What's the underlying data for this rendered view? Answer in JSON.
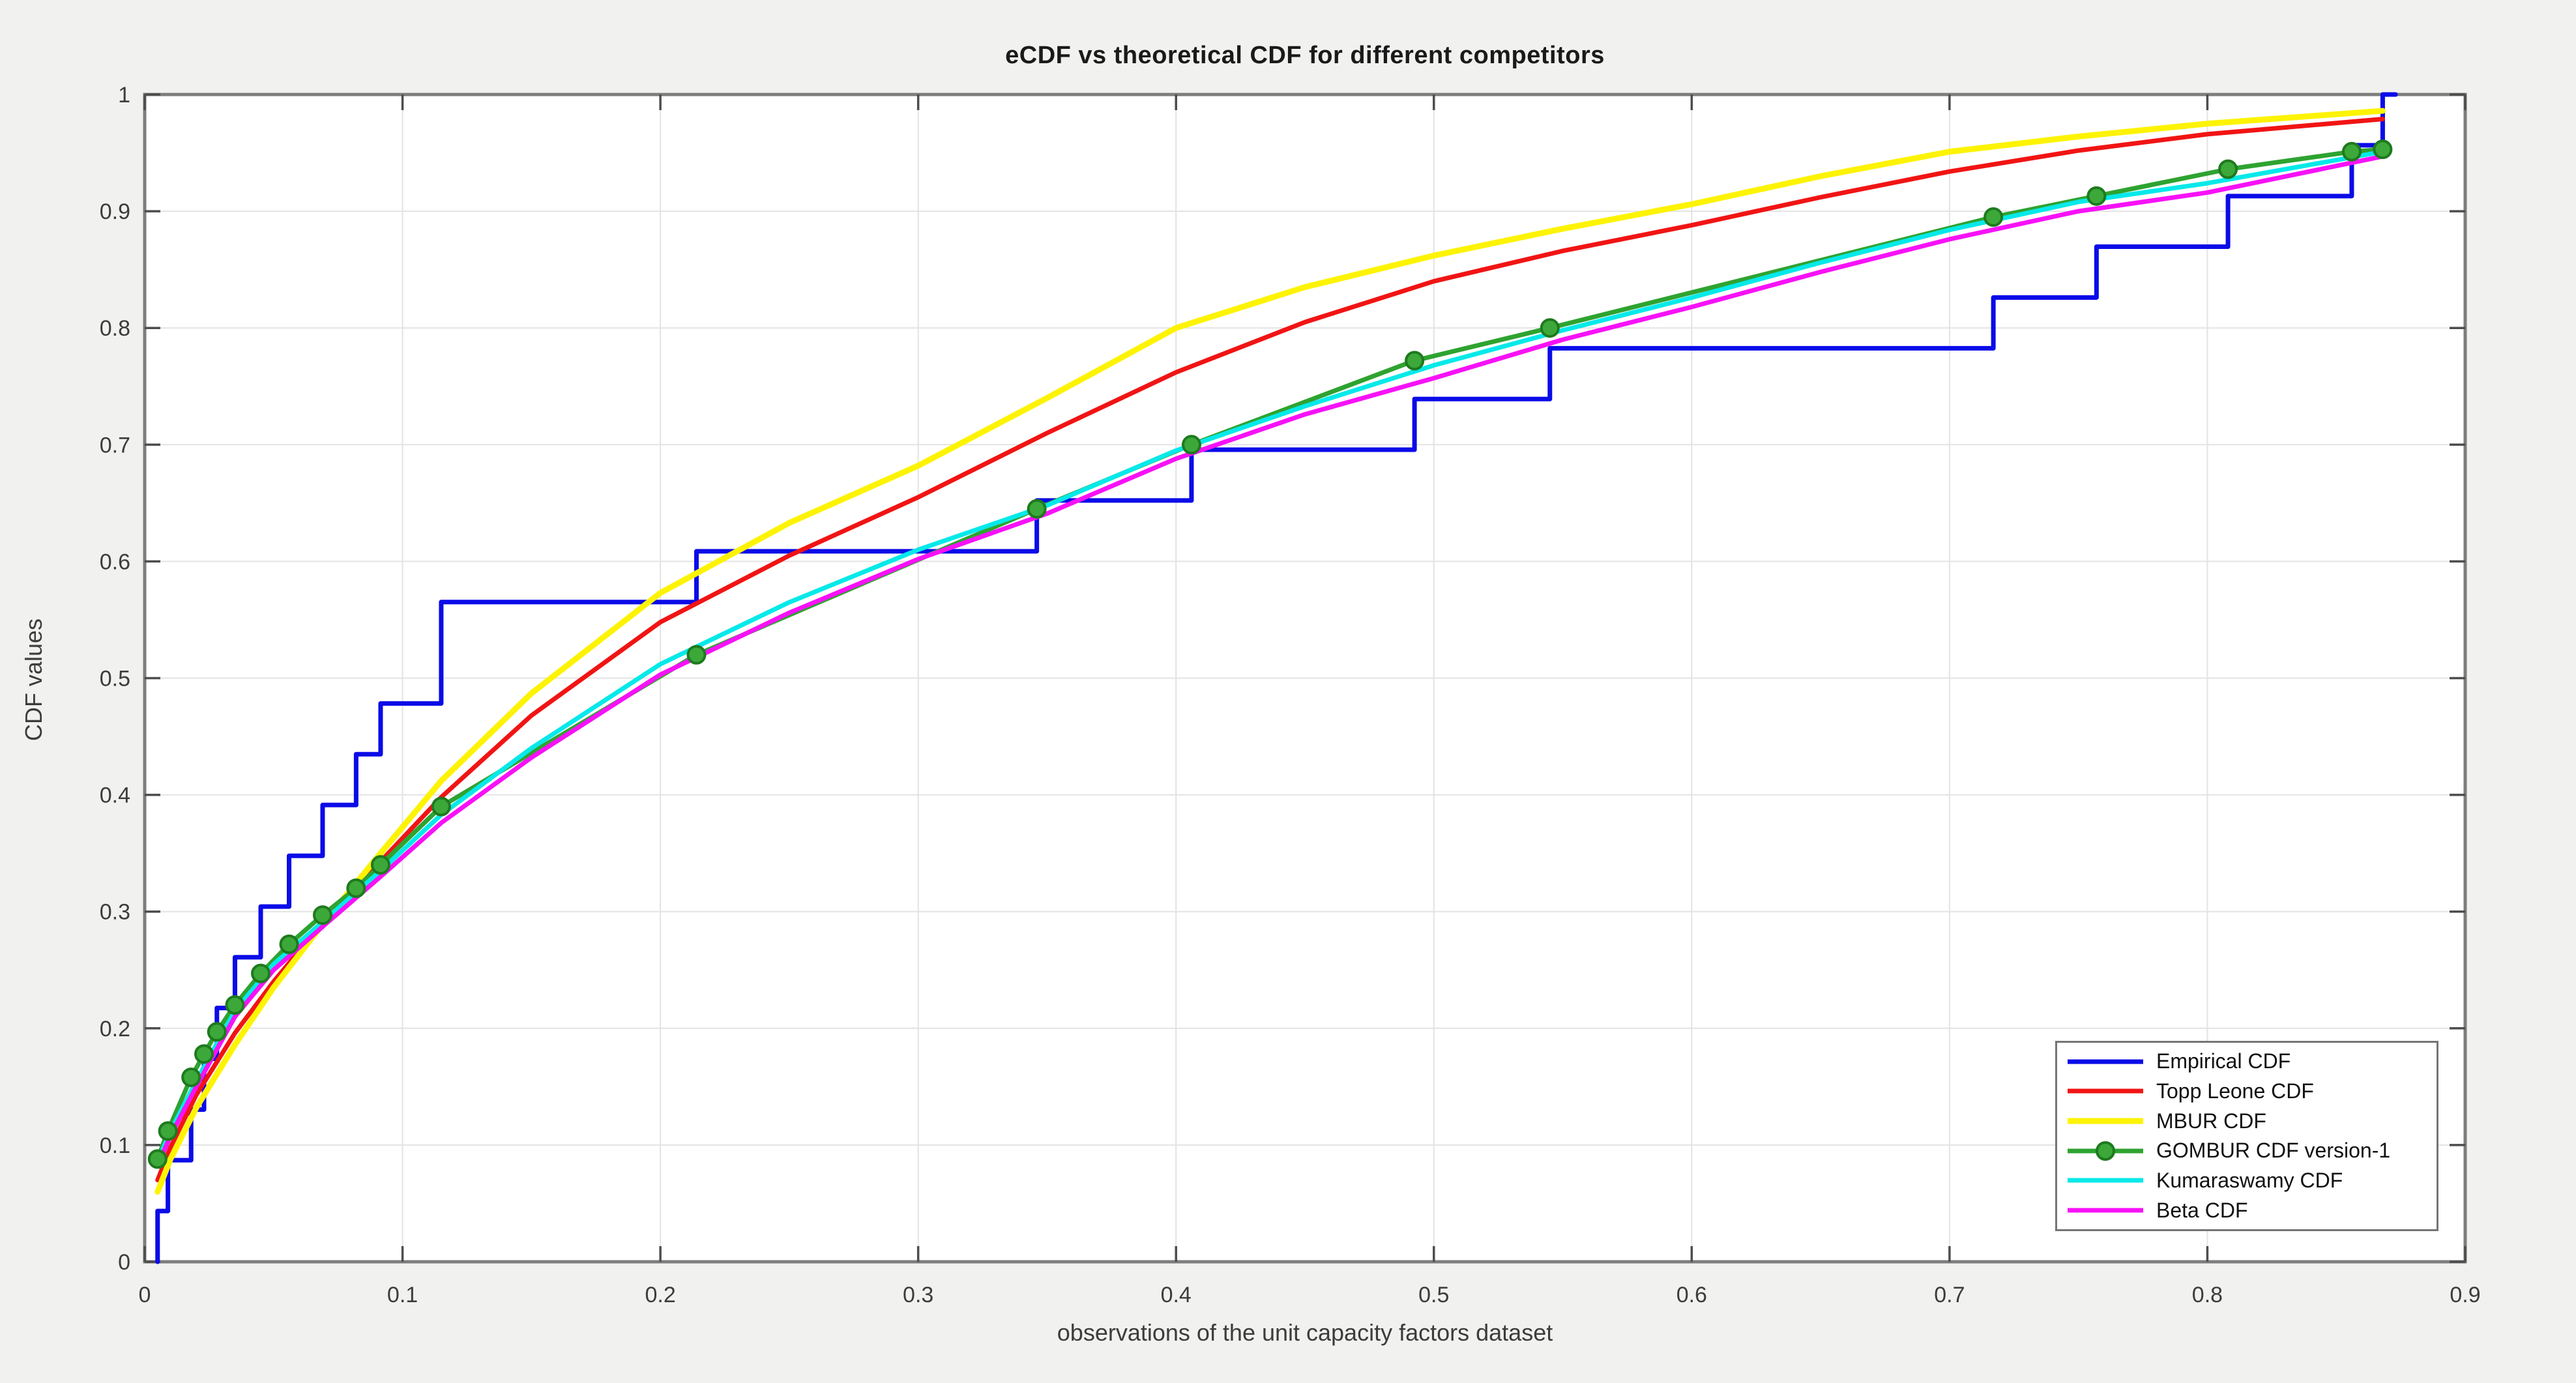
{
  "window": {
    "background_color": "#f1f1ef",
    "plot_background_color": "#ffffff",
    "axis_box_color": "#7d7d7d",
    "grid_color": "#e3e3e3",
    "tick_color": "#4d4d4d",
    "tick_label_color": "#3c3c3c"
  },
  "chart_data": {
    "type": "line",
    "title": "eCDF vs theoretical CDF for different competitors",
    "xlabel": "observations of the unit capacity factors dataset",
    "ylabel": "CDF values",
    "xlim": [
      0,
      0.9
    ],
    "ylim": [
      0,
      1
    ],
    "xticks": [
      0,
      0.1,
      0.2,
      0.3,
      0.4,
      0.5,
      0.6,
      0.7,
      0.8,
      0.9
    ],
    "xtick_labels": [
      "0",
      "0.1",
      "0.2",
      "0.3",
      "0.4",
      "0.5",
      "0.6",
      "0.7",
      "0.8",
      "0.9"
    ],
    "yticks": [
      0,
      0.1,
      0.2,
      0.3,
      0.4,
      0.5,
      0.6,
      0.7,
      0.8,
      0.9,
      1
    ],
    "ytick_labels": [
      "0",
      "0.1",
      "0.2",
      "0.3",
      "0.4",
      "0.5",
      "0.6",
      "0.7",
      "0.8",
      "0.9",
      "1"
    ],
    "grid": true,
    "legend_position": "lower right",
    "series": [
      {
        "name": "Empirical CDF",
        "color": "#0b0be8",
        "line_width": 7,
        "type": "step",
        "points": [
          [
            0.005,
            0.0435
          ],
          [
            0.009,
            0.087
          ],
          [
            0.018,
            0.1304
          ],
          [
            0.023,
            0.1739
          ],
          [
            0.028,
            0.2174
          ],
          [
            0.035,
            0.2609
          ],
          [
            0.045,
            0.3043
          ],
          [
            0.056,
            0.3478
          ],
          [
            0.069,
            0.3913
          ],
          [
            0.082,
            0.4348
          ],
          [
            0.0915,
            0.4783
          ],
          [
            0.115,
            0.5652
          ],
          [
            0.214,
            0.6087
          ],
          [
            0.346,
            0.6522
          ],
          [
            0.406,
            0.6957
          ],
          [
            0.4925,
            0.7391
          ],
          [
            0.545,
            0.7826
          ],
          [
            0.717,
            0.8261
          ],
          [
            0.757,
            0.8696
          ],
          [
            0.808,
            0.913
          ],
          [
            0.856,
            0.9565
          ],
          [
            0.868,
            1.0
          ]
        ],
        "tail_x": 0.873
      },
      {
        "name": "Topp Leone CDF",
        "color": "#f11414",
        "line_width": 7,
        "type": "line",
        "points": [
          [
            0.005,
            0.07
          ],
          [
            0.01,
            0.098
          ],
          [
            0.02,
            0.143
          ],
          [
            0.035,
            0.196
          ],
          [
            0.05,
            0.24
          ],
          [
            0.07,
            0.293
          ],
          [
            0.0915,
            0.343
          ],
          [
            0.115,
            0.398
          ],
          [
            0.15,
            0.468
          ],
          [
            0.2,
            0.548
          ],
          [
            0.25,
            0.605
          ],
          [
            0.3,
            0.655
          ],
          [
            0.35,
            0.71
          ],
          [
            0.4,
            0.762
          ],
          [
            0.45,
            0.805
          ],
          [
            0.5,
            0.84
          ],
          [
            0.55,
            0.866
          ],
          [
            0.6,
            0.888
          ],
          [
            0.65,
            0.912
          ],
          [
            0.7,
            0.934
          ],
          [
            0.75,
            0.952
          ],
          [
            0.8,
            0.966
          ],
          [
            0.868,
            0.979
          ]
        ]
      },
      {
        "name": "MBUR CDF",
        "color": "#fdf303",
        "line_width": 9,
        "type": "line",
        "points": [
          [
            0.005,
            0.06
          ],
          [
            0.01,
            0.088
          ],
          [
            0.02,
            0.132
          ],
          [
            0.035,
            0.186
          ],
          [
            0.05,
            0.235
          ],
          [
            0.07,
            0.292
          ],
          [
            0.0915,
            0.35
          ],
          [
            0.115,
            0.412
          ],
          [
            0.15,
            0.487
          ],
          [
            0.2,
            0.573
          ],
          [
            0.25,
            0.633
          ],
          [
            0.3,
            0.682
          ],
          [
            0.35,
            0.74
          ],
          [
            0.4,
            0.8
          ],
          [
            0.45,
            0.835
          ],
          [
            0.5,
            0.862
          ],
          [
            0.55,
            0.885
          ],
          [
            0.6,
            0.906
          ],
          [
            0.65,
            0.93
          ],
          [
            0.7,
            0.951
          ],
          [
            0.75,
            0.964
          ],
          [
            0.8,
            0.975
          ],
          [
            0.868,
            0.986
          ]
        ]
      },
      {
        "name": "GOMBUR CDF version-1",
        "color": "#2ea330",
        "line_width": 7,
        "type": "line-marker",
        "marker": "circle",
        "marker_fill": "#3da83a",
        "marker_edge": "#1e7a1e",
        "marker_radius": 13,
        "points": [
          [
            0.005,
            0.088
          ],
          [
            0.009,
            0.112
          ],
          [
            0.018,
            0.158
          ],
          [
            0.023,
            0.178
          ],
          [
            0.028,
            0.197
          ],
          [
            0.035,
            0.22
          ],
          [
            0.045,
            0.247
          ],
          [
            0.056,
            0.272
          ],
          [
            0.069,
            0.297
          ],
          [
            0.082,
            0.32
          ],
          [
            0.0915,
            0.34
          ],
          [
            0.115,
            0.39
          ],
          [
            0.214,
            0.52
          ],
          [
            0.346,
            0.645
          ],
          [
            0.406,
            0.7
          ],
          [
            0.4925,
            0.772
          ],
          [
            0.545,
            0.8
          ],
          [
            0.717,
            0.895
          ],
          [
            0.757,
            0.913
          ],
          [
            0.808,
            0.936
          ],
          [
            0.856,
            0.951
          ],
          [
            0.868,
            0.953
          ]
        ]
      },
      {
        "name": "Kumaraswamy CDF",
        "color": "#06e9e9",
        "line_width": 7,
        "type": "line",
        "points": [
          [
            0.005,
            0.086
          ],
          [
            0.01,
            0.112
          ],
          [
            0.02,
            0.155
          ],
          [
            0.035,
            0.215
          ],
          [
            0.05,
            0.255
          ],
          [
            0.07,
            0.293
          ],
          [
            0.0915,
            0.335
          ],
          [
            0.115,
            0.383
          ],
          [
            0.15,
            0.44
          ],
          [
            0.2,
            0.512
          ],
          [
            0.25,
            0.565
          ],
          [
            0.3,
            0.61
          ],
          [
            0.35,
            0.648
          ],
          [
            0.4,
            0.695
          ],
          [
            0.45,
            0.733
          ],
          [
            0.5,
            0.768
          ],
          [
            0.55,
            0.798
          ],
          [
            0.6,
            0.826
          ],
          [
            0.65,
            0.856
          ],
          [
            0.7,
            0.884
          ],
          [
            0.75,
            0.908
          ],
          [
            0.8,
            0.924
          ],
          [
            0.868,
            0.951
          ]
        ]
      },
      {
        "name": "Beta CDF",
        "color": "#f711f7",
        "line_width": 7,
        "type": "line",
        "points": [
          [
            0.005,
            0.082
          ],
          [
            0.01,
            0.108
          ],
          [
            0.02,
            0.15
          ],
          [
            0.035,
            0.21
          ],
          [
            0.05,
            0.25
          ],
          [
            0.07,
            0.289
          ],
          [
            0.0915,
            0.33
          ],
          [
            0.115,
            0.376
          ],
          [
            0.15,
            0.432
          ],
          [
            0.2,
            0.503
          ],
          [
            0.25,
            0.556
          ],
          [
            0.3,
            0.602
          ],
          [
            0.35,
            0.641
          ],
          [
            0.4,
            0.688
          ],
          [
            0.45,
            0.726
          ],
          [
            0.5,
            0.757
          ],
          [
            0.55,
            0.79
          ],
          [
            0.6,
            0.818
          ],
          [
            0.65,
            0.848
          ],
          [
            0.7,
            0.876
          ],
          [
            0.75,
            0.9
          ],
          [
            0.8,
            0.916
          ],
          [
            0.868,
            0.947
          ]
        ]
      }
    ]
  }
}
